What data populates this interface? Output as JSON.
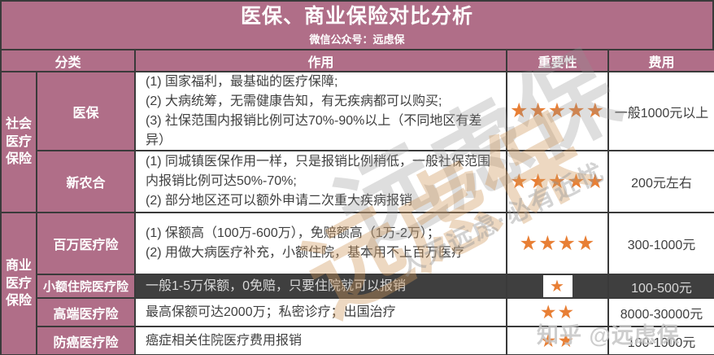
{
  "header": {
    "title": "医保、商业保险对比分析",
    "subtitle": "微信公众号：远虑保"
  },
  "columns": {
    "category": "分类",
    "function": "作用",
    "importance": "重要性",
    "cost": "费用"
  },
  "groups": [
    {
      "name": "社会医疗保险"
    },
    {
      "name": "商业医疗保险"
    }
  ],
  "rows": [
    {
      "name": "医保",
      "items": [
        "(1) 国家福利，最基础的医疗保障;",
        "(2) 大病统筹，无需健康告知，有无疾病都可以购买;",
        "(3) 社保范围内报销比例可达70%-90%以上（不同地区有差异）"
      ],
      "stars": 5,
      "stars_text": "★★★★★",
      "cost": "一般1000元以上",
      "highlighted": false
    },
    {
      "name": "新农合",
      "items": [
        "(1) 同城镇医保作用一样，只是报销比例稍低，一般社保范围内报销比例可达50%-70%;",
        "(2) 部分地区还可以额外申请二次重大疾病报销"
      ],
      "stars": 5,
      "stars_text": "★★★★★",
      "cost": "200元左右",
      "highlighted": false
    },
    {
      "name": "百万医疗险",
      "items": [
        "(1) 保额高（100万-600万），免赔额高（1万-2万）；",
        "(2) 用做大病医疗补充，小额住院，基本用不上百万医疗"
      ],
      "stars": 4,
      "stars_text": "★★★★",
      "cost": "300-1000元",
      "highlighted": false
    },
    {
      "name": "小额住院医疗险",
      "items": [
        "一般1-5万保额，0免赔，只要住院就可以报销"
      ],
      "stars": 1,
      "stars_text": "★",
      "cost": "100-500元",
      "highlighted": true
    },
    {
      "name": "高端医疗险",
      "items": [
        "最高保额可达2000万；私密诊疗；出国治疗"
      ],
      "stars": 2,
      "stars_text": "★★",
      "cost": "8000-30000元",
      "highlighted": false
    },
    {
      "name": "防癌医疗险",
      "items": [
        "癌症相关住院医疗费用报销"
      ],
      "stars": 2,
      "stars_text": "★★",
      "cost": "100-1000元",
      "highlighted": false
    }
  ],
  "watermarks": {
    "brand": "远虑保",
    "slogan": "人无远虑·必有近忧",
    "zhihu": "知乎 @远虑保"
  },
  "colors": {
    "mauve": "#b06e88",
    "dark_row": "#3f3f3f",
    "star_orange": "#e87f35",
    "border": "#3a3a3a"
  }
}
